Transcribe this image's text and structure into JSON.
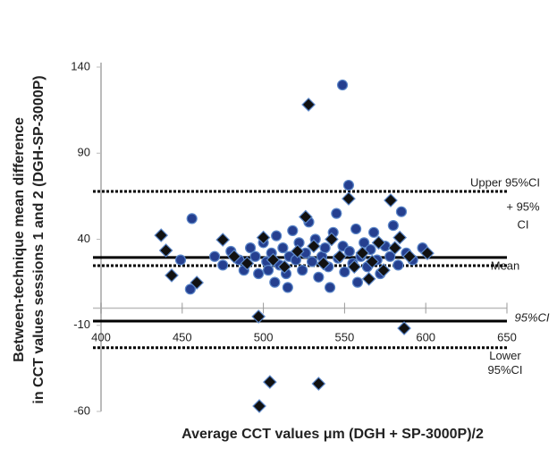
{
  "chart_data": {
    "type": "scatter",
    "xlabel": "Average CCT values μm (DGH + SP-3000P)/2",
    "ylabel": [
      "Between-technique mean difference",
      "in CCT values sessions 1 and 2 (DGH-SP-3000P)"
    ],
    "xlim": [
      400,
      650
    ],
    "xticks": [
      400,
      450,
      500,
      550,
      600,
      650
    ],
    "ylim": [
      -60,
      140
    ],
    "yticks": [
      -60,
      -10,
      40,
      90,
      140
    ],
    "series": [
      {
        "marker": "circle",
        "color": "#253f8f",
        "x": [
          449,
          455,
          456,
          470,
          475,
          480,
          485,
          488,
          492,
          495,
          497,
          500,
          502,
          505,
          507,
          508,
          510,
          512,
          514,
          516,
          518,
          520,
          522,
          524,
          526,
          528,
          530,
          532,
          534,
          536,
          538,
          540,
          541,
          543,
          545,
          546,
          548.7,
          549,
          550,
          552.5,
          553,
          555,
          557,
          558,
          560,
          562,
          564,
          566,
          568,
          570,
          572,
          575,
          578,
          580,
          583,
          585,
          588,
          592,
          598,
          503,
          515
        ],
        "y": [
          28,
          11,
          52,
          30,
          25,
          33,
          28,
          22,
          35,
          30,
          20,
          38,
          27,
          32,
          15,
          42,
          25,
          35,
          20,
          30,
          45,
          28,
          38,
          22,
          32,
          50,
          27,
          40,
          18,
          30,
          35,
          24,
          12,
          44,
          55,
          29,
          129.6,
          36,
          21,
          71.4,
          33,
          26,
          46,
          15,
          30,
          38,
          24,
          34,
          44,
          28,
          20,
          36,
          30,
          48,
          25,
          56,
          32,
          28,
          35,
          22,
          12
        ]
      },
      {
        "marker": "diamond",
        "color": "#111111",
        "x": [
          437,
          440,
          443.5,
          459,
          475,
          482,
          490,
          497,
          497.5,
          500,
          504,
          506,
          513,
          521,
          526,
          527.8,
          531,
          534,
          537,
          542,
          547,
          552.5,
          556,
          561,
          567,
          571,
          574,
          578.4,
          581,
          584,
          586.7,
          590,
          601,
          565
        ],
        "y": [
          42.3,
          33.5,
          19,
          14.8,
          39.7,
          30,
          26,
          -4.9,
          -56.9,
          41,
          -42.9,
          28,
          24,
          33,
          53,
          118.2,
          36,
          -43.9,
          26,
          40,
          30,
          63.6,
          24,
          32,
          27,
          38,
          22,
          62.6,
          35,
          41,
          -11.7,
          30,
          31.9,
          17
        ]
      }
    ],
    "hlines": [
      {
        "value": 67.8,
        "style": "dotted",
        "label": [
          "Upper 95%CI"
        ],
        "sublabel": [
          "+ 95%",
          "CI"
        ]
      },
      {
        "value": 29.4,
        "style": "solid",
        "label": [
          "Mean"
        ]
      },
      {
        "value": 24.7,
        "style": "dotted"
      },
      {
        "value": -7.5,
        "style": "solid",
        "label": [
          "95%CI"
        ],
        "italic": true
      },
      {
        "value": -23,
        "style": "dotted",
        "label": [
          "Lower",
          "95%CI"
        ]
      }
    ]
  }
}
